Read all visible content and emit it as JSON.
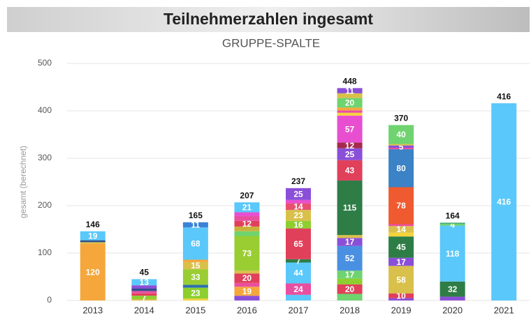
{
  "chart_data": {
    "type": "stacked_bar",
    "title": "Teilnehmerzahlen ingesamt",
    "subtitle": "GRUPPE-SPALTE",
    "y_label": "gesamt (berechnet)",
    "categories": [
      "2013",
      "2014",
      "2015",
      "2016",
      "2017",
      "2018",
      "2019",
      "2020",
      "2021"
    ],
    "totals": [
      146,
      45,
      165,
      207,
      237,
      448,
      370,
      164,
      416
    ],
    "ylim": [
      0,
      500
    ],
    "yticks": [
      0,
      100,
      200,
      300,
      400,
      500
    ],
    "grid": true,
    "stacks": [
      [
        {
          "value": 120,
          "color": "#f5a73b",
          "labeled": true
        },
        {
          "value": 3,
          "color": "#d9c04a"
        },
        {
          "value": 4,
          "color": "#2d4f8c"
        },
        {
          "value": 19,
          "color": "#5ac8fa",
          "labeled": true
        }
      ],
      [
        {
          "value": 3,
          "color": "#d9c04a"
        },
        {
          "value": 7,
          "color": "#8ccf2e",
          "labeled": true
        },
        {
          "value": 5,
          "color": "#e0405a"
        },
        {
          "value": 5,
          "color": "#e94fa0"
        },
        {
          "value": 5,
          "color": "#2d4f8c"
        },
        {
          "value": 7,
          "color": "#8a4fd8"
        },
        {
          "value": 13,
          "color": "#5ac8fa",
          "labeled": true
        }
      ],
      [
        {
          "value": 4,
          "color": "#f5d33a"
        },
        {
          "value": 23,
          "color": "#8ccf2e",
          "labeled": true
        },
        {
          "value": 6,
          "color": "#2d6fb0"
        },
        {
          "value": 33,
          "color": "#9acd32",
          "labeled": true
        },
        {
          "value": 15,
          "color": "#d9c04a",
          "labeled": true
        },
        {
          "value": 5,
          "color": "#f5a73b"
        },
        {
          "value": 68,
          "color": "#5ac8fa",
          "labeled": true
        },
        {
          "value": 11,
          "color": "#3b82d6",
          "labeled": true
        }
      ],
      [
        {
          "value": 10,
          "color": "#8a4fd8"
        },
        {
          "value": 19,
          "color": "#f5a73b",
          "labeled": true
        },
        {
          "value": 8,
          "color": "#e94fa0"
        },
        {
          "value": 20,
          "color": "#e0405a",
          "labeled": true
        },
        {
          "value": 6,
          "color": "#d9c04a"
        },
        {
          "value": 73,
          "color": "#9acd32",
          "labeled": true
        },
        {
          "value": 10,
          "color": "#6fd36f"
        },
        {
          "value": 10,
          "color": "#c9b23a"
        },
        {
          "value": 12,
          "color": "#e0405a",
          "labeled": true
        },
        {
          "value": 10,
          "color": "#e94fa0"
        },
        {
          "value": 8,
          "color": "#e84fd0"
        },
        {
          "value": 21,
          "color": "#5ac8fa",
          "labeled": true
        }
      ],
      [
        {
          "value": 12,
          "color": "#5ac8fa"
        },
        {
          "value": 24,
          "color": "#e94fa0",
          "labeled": true
        },
        {
          "value": 44,
          "color": "#5ac8fa",
          "labeled": true
        },
        {
          "value": 7,
          "color": "#2e7d46",
          "labeled": true
        },
        {
          "value": 65,
          "color": "#e0405a",
          "labeled": true
        },
        {
          "value": 16,
          "color": "#8ccf2e",
          "labeled": true
        },
        {
          "value": 23,
          "color": "#d9c04a",
          "labeled": true
        },
        {
          "value": 14,
          "color": "#e94f6f",
          "labeled": true
        },
        {
          "value": 7,
          "color": "#e84fd0"
        },
        {
          "value": 25,
          "color": "#8a4fd8",
          "labeled": true
        }
      ],
      [
        {
          "value": 14,
          "color": "#6fd36f"
        },
        {
          "value": 20,
          "color": "#e0405a",
          "labeled": true
        },
        {
          "value": 12,
          "color": "#8ccf2e"
        },
        {
          "value": 17,
          "color": "#6fd36f",
          "labeled": true
        },
        {
          "value": 52,
          "color": "#4a90e2",
          "labeled": true
        },
        {
          "value": 17,
          "color": "#8a4fd8",
          "labeled": true
        },
        {
          "value": 6,
          "color": "#d9c04a"
        },
        {
          "value": 115,
          "color": "#2e7d46",
          "labeled": true
        },
        {
          "value": 43,
          "color": "#e0405a",
          "labeled": true
        },
        {
          "value": 25,
          "color": "#8a4fd8",
          "labeled": true
        },
        {
          "value": 12,
          "color": "#a52a4a",
          "labeled": true
        },
        {
          "value": 57,
          "color": "#e84fd0",
          "labeled": true
        },
        {
          "value": 6,
          "color": "#f5d33a"
        },
        {
          "value": 5,
          "color": "#e94fa0"
        },
        {
          "value": 6,
          "color": "#f5a73b"
        },
        {
          "value": 20,
          "color": "#6fd36f",
          "labeled": true
        },
        {
          "value": 10,
          "color": "#d9c04a"
        },
        {
          "value": 11,
          "color": "#8a4fd8",
          "labeled": true
        }
      ],
      [
        {
          "value": 5,
          "color": "#8a4fd8"
        },
        {
          "value": 10,
          "color": "#e0405a",
          "labeled": true
        },
        {
          "value": 58,
          "color": "#d9c04a",
          "labeled": true
        },
        {
          "value": 17,
          "color": "#8a4fd8",
          "labeled": true
        },
        {
          "value": 45,
          "color": "#2e7d46",
          "labeled": true
        },
        {
          "value": 8,
          "color": "#f5d33a"
        },
        {
          "value": 14,
          "color": "#d9c04a",
          "labeled": true
        },
        {
          "value": 4,
          "color": "#e94fa0"
        },
        {
          "value": 78,
          "color": "#f05a30",
          "labeled": true
        },
        {
          "value": 80,
          "color": "#3b82c6",
          "labeled": true
        },
        {
          "value": 3,
          "color": "#e94fa0"
        },
        {
          "value": 5,
          "color": "#8a4fd8",
          "labeled": true
        },
        {
          "value": 3,
          "color": "#d9c04a"
        },
        {
          "value": 40,
          "color": "#6fd36f",
          "labeled": true
        }
      ],
      [
        {
          "value": 8,
          "color": "#8a4fd8"
        },
        {
          "value": 32,
          "color": "#2e7d46",
          "labeled": true
        },
        {
          "value": 118,
          "color": "#5ac8fa",
          "labeled": true
        },
        {
          "value": 4,
          "color": "#6fd36f",
          "labeled": true
        },
        {
          "value": 2,
          "color": "#2e9d66"
        }
      ],
      [
        {
          "value": 416,
          "color": "#5ac8fa",
          "labeled": true
        }
      ]
    ]
  }
}
